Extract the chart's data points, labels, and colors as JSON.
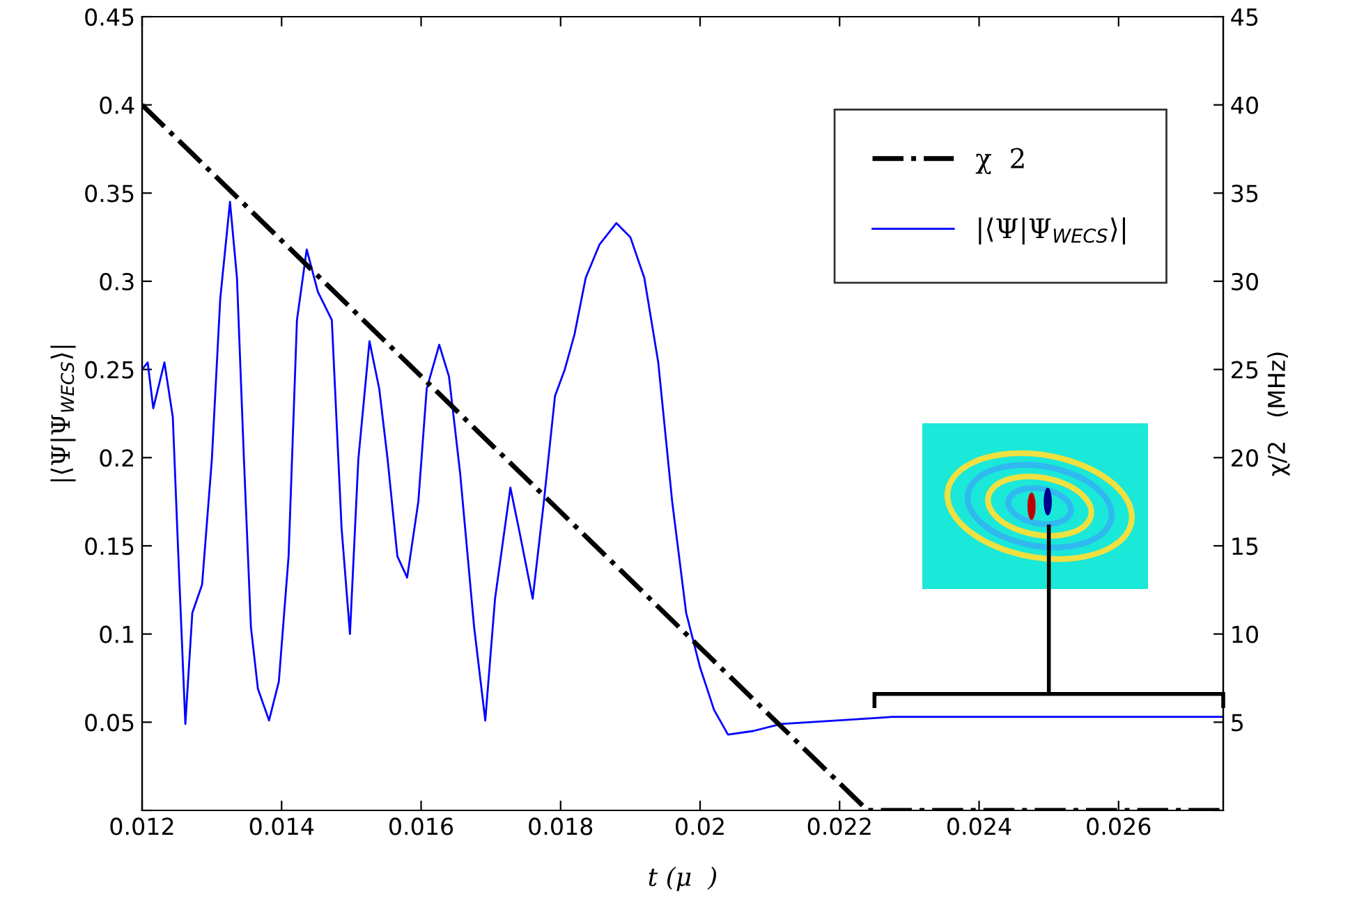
{
  "chart_data": {
    "type": "line",
    "xlabel": "t (μ  )",
    "ylabel": "|⟨Ψ|Ψ$_{WECS}$⟩|",
    "y2label": "χ/2   (MHz)",
    "xlim": [
      0.012,
      0.0275
    ],
    "xticks": [
      0.012,
      0.014,
      0.016,
      0.018,
      0.02,
      0.022,
      0.024,
      0.026
    ],
    "ylim": [
      0,
      0.45
    ],
    "yticks": [
      {
        "value": 0,
        "label": null
      },
      0.05,
      0.1,
      0.15,
      0.2,
      0.25,
      0.3,
      0.35,
      0.4,
      0.45
    ],
    "y2lim": [
      0,
      45
    ],
    "y2ticks": [
      {
        "value": 0,
        "label": null
      },
      5,
      10,
      15,
      20,
      25,
      30,
      35,
      40,
      45
    ],
    "legend": "top right",
    "grid": false,
    "series": [
      {
        "name": "χ  2",
        "color": "#000000",
        "axis": "y2",
        "line_style": "dashdot",
        "x": [
          0.012,
          0.0224,
          0.0275
        ],
        "values": [
          40,
          0,
          0
        ]
      },
      {
        "name": "|⟨Ψ|Ψ$_{WECS}$⟩|",
        "color": "#0000ff",
        "line_style": "solid",
        "x": [
          0.012,
          0.01208,
          0.01216,
          0.01232,
          0.01244,
          0.01252,
          0.01262,
          0.01272,
          0.01286,
          0.013,
          0.01312,
          0.01326,
          0.01336,
          0.01346,
          0.01356,
          0.01366,
          0.01382,
          0.01396,
          0.0141,
          0.01422,
          0.01436,
          0.01452,
          0.01472,
          0.01486,
          0.01498,
          0.0151,
          0.01526,
          0.0154,
          0.01552,
          0.01566,
          0.0158,
          0.01596,
          0.01608,
          0.01626,
          0.0164,
          0.01656,
          0.01676,
          0.01692,
          0.01706,
          0.01728,
          0.0174,
          0.0176,
          0.01776,
          0.01792,
          0.01806,
          0.0182,
          0.01836,
          0.01856,
          0.0188,
          0.019,
          0.0192,
          0.0194,
          0.0196,
          0.0198,
          0.02,
          0.0202,
          0.0204,
          0.02076,
          0.02116,
          0.02196,
          0.02276,
          0.0275
        ],
        "values": [
          0.25,
          0.254,
          0.228,
          0.254,
          0.223,
          0.144,
          0.049,
          0.112,
          0.128,
          0.199,
          0.29,
          0.345,
          0.302,
          0.199,
          0.104,
          0.069,
          0.051,
          0.073,
          0.144,
          0.278,
          0.318,
          0.294,
          0.278,
          0.16,
          0.1,
          0.199,
          0.266,
          0.239,
          0.199,
          0.144,
          0.132,
          0.175,
          0.239,
          0.264,
          0.246,
          0.191,
          0.104,
          0.051,
          0.12,
          0.183,
          0.16,
          0.12,
          0.175,
          0.235,
          0.25,
          0.27,
          0.302,
          0.321,
          0.333,
          0.325,
          0.302,
          0.254,
          0.175,
          0.112,
          0.081,
          0.057,
          0.043,
          0.045,
          0.049,
          0.051,
          0.053,
          0.053
        ]
      }
    ]
  }
}
